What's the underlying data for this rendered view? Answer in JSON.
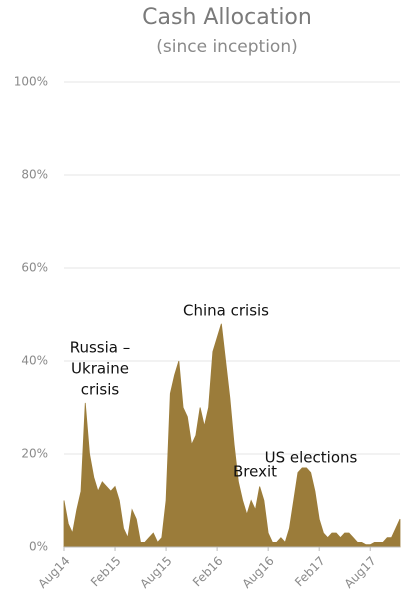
{
  "chart_data": {
    "type": "area",
    "title": "Cash Allocation",
    "subtitle": "(since inception)",
    "color": "#9b7c3a",
    "grid": true,
    "x": [
      0,
      0.5,
      1,
      1.5,
      2,
      2.5,
      3,
      3.5,
      4,
      4.5,
      5,
      5.5,
      6,
      6.5,
      7,
      7.5,
      8,
      8.5,
      9,
      9.5,
      10,
      10.5,
      11,
      11.5,
      12,
      12.5,
      13,
      13.5,
      14,
      14.5,
      15,
      15.5,
      16,
      16.5,
      17,
      17.5,
      18,
      18.5,
      19,
      19.5,
      20,
      20.5,
      21,
      21.5,
      22,
      22.5,
      23,
      23.5,
      24,
      24.5,
      25,
      25.5,
      26,
      26.5,
      27,
      27.5,
      28,
      28.5,
      29,
      29.5,
      30,
      30.5,
      31,
      31.5,
      32,
      32.5,
      33,
      33.5,
      34,
      34.5,
      35,
      35.5,
      36,
      36.5,
      37,
      37.5,
      38,
      38.5,
      39,
      39.5
    ],
    "values": [
      10,
      5,
      3,
      8,
      12,
      31,
      20,
      15,
      12,
      14,
      13,
      12,
      13,
      10,
      4,
      2,
      8,
      6,
      1,
      1,
      2,
      3,
      1,
      2,
      10,
      33,
      37,
      40,
      30,
      28,
      22,
      24,
      30,
      26,
      30,
      42,
      45,
      48,
      40,
      32,
      22,
      14,
      10,
      7,
      10,
      8,
      13,
      10,
      3,
      1,
      1,
      2,
      1,
      4,
      10,
      16,
      17,
      17,
      16,
      12,
      6,
      3,
      2,
      3,
      3,
      2,
      3,
      3,
      2,
      1,
      1,
      0.5,
      0.5,
      1,
      1,
      1,
      2,
      2,
      4,
      6
    ],
    "xlim": [
      0,
      39.5
    ],
    "xticks": [
      {
        "value": 0,
        "label": "Aug14"
      },
      {
        "value": 6,
        "label": "Feb15"
      },
      {
        "value": 12,
        "label": "Aug15"
      },
      {
        "value": 18,
        "label": "Feb16"
      },
      {
        "value": 24,
        "label": "Aug16"
      },
      {
        "value": 30,
        "label": "Feb17"
      },
      {
        "value": 36,
        "label": "Aug17"
      }
    ],
    "ylim": [
      0,
      100
    ],
    "yticks": [
      {
        "value": 0,
        "label": "0%"
      },
      {
        "value": 20,
        "label": "20%"
      },
      {
        "value": 40,
        "label": "40%"
      },
      {
        "value": 60,
        "label": "60%"
      },
      {
        "value": 80,
        "label": "80%"
      },
      {
        "value": 100,
        "label": "100%"
      }
    ],
    "annotations": [
      [
        "Russia –",
        "Ukraine",
        "crisis"
      ],
      [
        "China crisis"
      ],
      [
        "Brexit"
      ],
      [
        "US elections"
      ]
    ]
  }
}
